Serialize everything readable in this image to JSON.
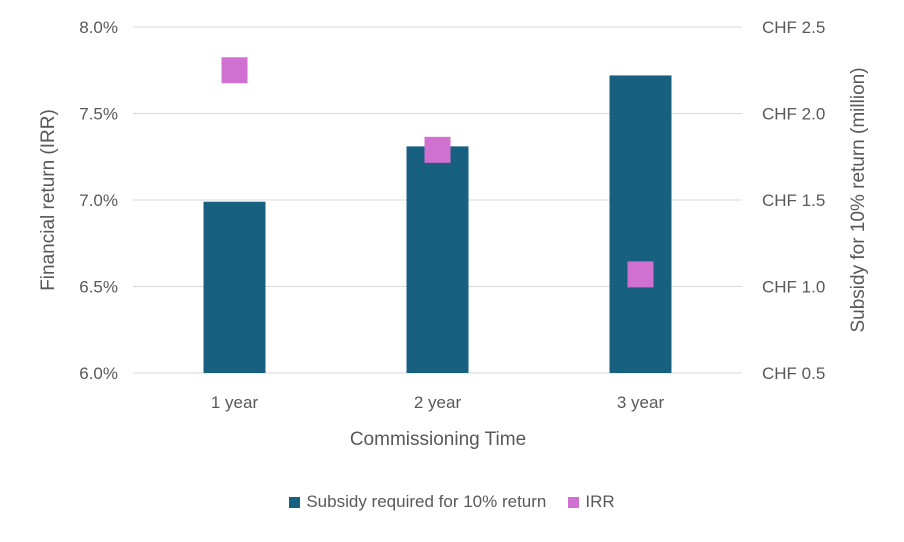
{
  "chart_data": {
    "type": "bar",
    "categories": [
      "1 year",
      "2 year",
      "3 year"
    ],
    "series": [
      {
        "name": "Subsidy required for 10% return",
        "kind": "bar",
        "axis": "right",
        "color": "#17607F",
        "values": [
          1.49,
          1.81,
          2.22
        ]
      },
      {
        "name": "IRR",
        "kind": "marker",
        "marker": "square",
        "axis": "left",
        "color": "#D070D0",
        "values": [
          7.75,
          7.29,
          6.57
        ]
      }
    ],
    "xlabel": "Commissioning Time",
    "ylabel": "Financial return (IRR)",
    "y2label": "Subsidy for 10% return (million)",
    "ylim": [
      6.0,
      8.0
    ],
    "y_ticks": [
      6.0,
      6.5,
      7.0,
      7.5,
      8.0
    ],
    "y_tick_labels": [
      "6.0%",
      "6.5%",
      "7.0%",
      "7.5%",
      "8.0%"
    ],
    "y2lim": [
      0.5,
      2.5
    ],
    "y2_ticks": [
      0.5,
      1.0,
      1.5,
      2.0,
      2.5
    ],
    "y2_tick_labels": [
      "CHF 0.5",
      "CHF 1.0",
      "CHF 1.5",
      "CHF 2.0",
      "CHF 2.5"
    ],
    "grid": true,
    "gridline_color": "#D9D9D9",
    "legend_position": "bottom"
  }
}
